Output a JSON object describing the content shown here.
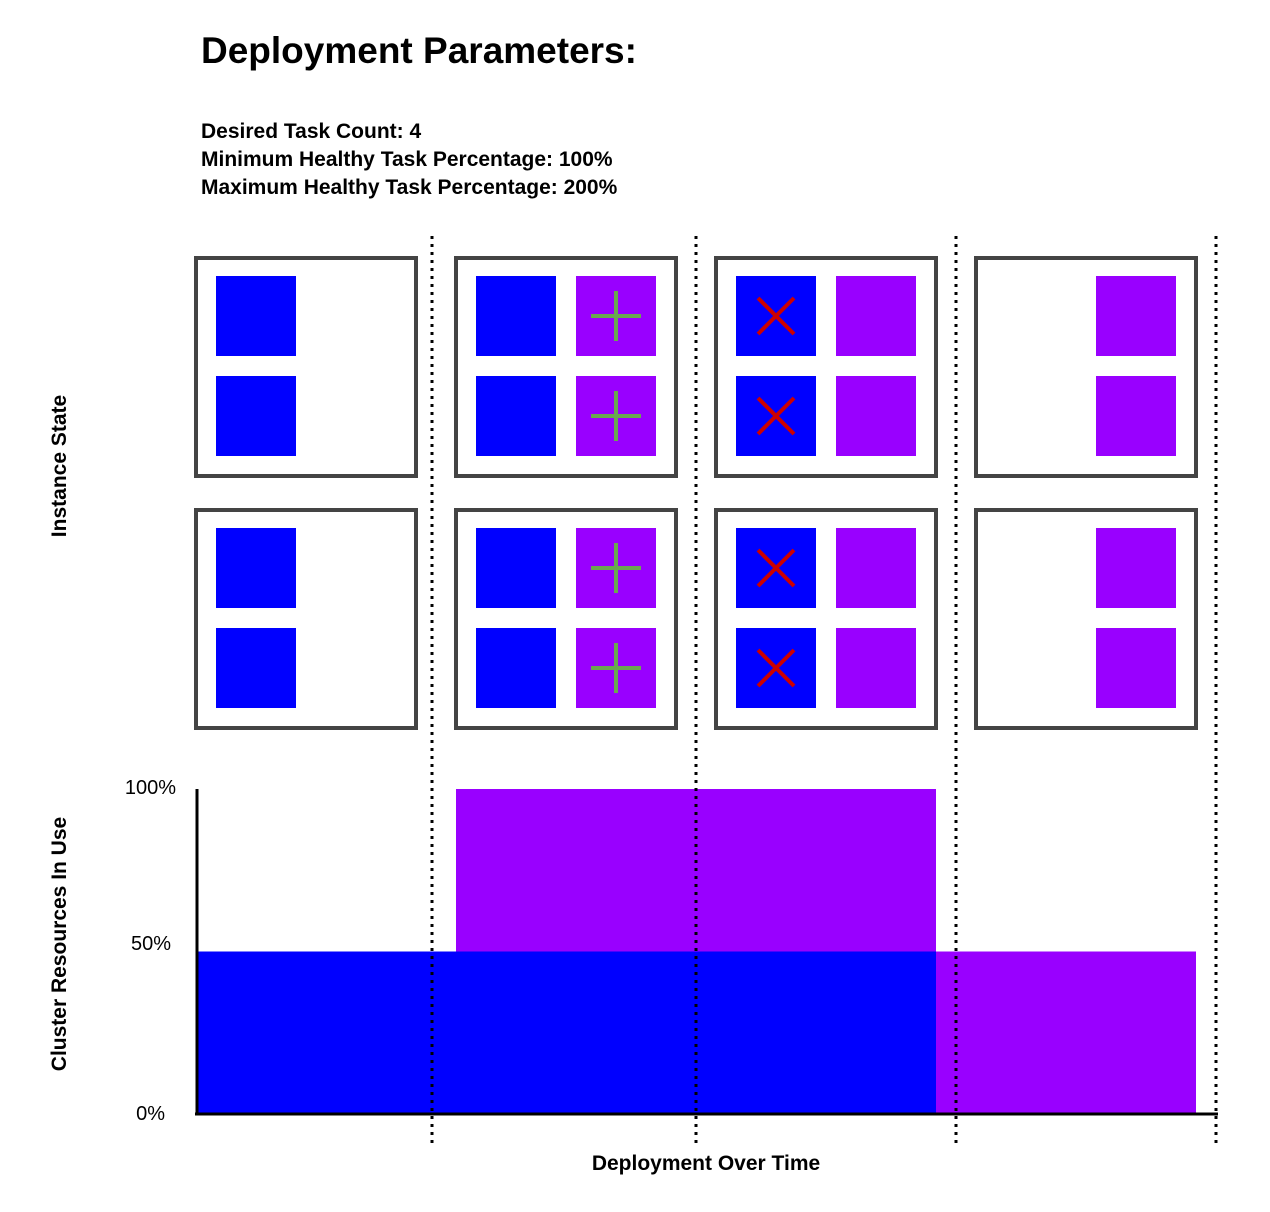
{
  "title": "Deployment Parameters:",
  "parameters": [
    "Desired Task Count: 4",
    "Minimum Healthy Task Percentage: 100%",
    "Maximum Healthy Task Percentage: 200%"
  ],
  "labels": {
    "instance_state": "Instance State",
    "cluster_resources": "Cluster Resources In Use",
    "x_axis": "Deployment Over Time"
  },
  "y_ticks": [
    "100%",
    "50%",
    "0%"
  ],
  "colors": {
    "old_task": "#0000ff",
    "new_task": "#9900ff",
    "plus": "#6aa84f",
    "cross": "#cc0000",
    "border": "#444444"
  },
  "stages": [
    {
      "instances": [
        {
          "tasks": [
            {
              "type": "old",
              "mark": "none"
            },
            null,
            {
              "type": "old",
              "mark": "none"
            },
            null
          ]
        },
        {
          "tasks": [
            {
              "type": "old",
              "mark": "none"
            },
            null,
            {
              "type": "old",
              "mark": "none"
            },
            null
          ]
        }
      ]
    },
    {
      "instances": [
        {
          "tasks": [
            {
              "type": "old",
              "mark": "none"
            },
            {
              "type": "new",
              "mark": "plus"
            },
            {
              "type": "old",
              "mark": "none"
            },
            {
              "type": "new",
              "mark": "plus"
            }
          ]
        },
        {
          "tasks": [
            {
              "type": "old",
              "mark": "none"
            },
            {
              "type": "new",
              "mark": "plus"
            },
            {
              "type": "old",
              "mark": "none"
            },
            {
              "type": "new",
              "mark": "plus"
            }
          ]
        }
      ]
    },
    {
      "instances": [
        {
          "tasks": [
            {
              "type": "old",
              "mark": "cross"
            },
            {
              "type": "new",
              "mark": "none"
            },
            {
              "type": "old",
              "mark": "cross"
            },
            {
              "type": "new",
              "mark": "none"
            }
          ]
        },
        {
          "tasks": [
            {
              "type": "old",
              "mark": "cross"
            },
            {
              "type": "new",
              "mark": "none"
            },
            {
              "type": "old",
              "mark": "cross"
            },
            {
              "type": "new",
              "mark": "none"
            }
          ]
        }
      ]
    },
    {
      "instances": [
        {
          "tasks": [
            null,
            {
              "type": "new",
              "mark": "none"
            },
            null,
            {
              "type": "new",
              "mark": "none"
            }
          ]
        },
        {
          "tasks": [
            null,
            {
              "type": "new",
              "mark": "none"
            },
            null,
            {
              "type": "new",
              "mark": "none"
            }
          ]
        }
      ]
    }
  ],
  "resources": [
    {
      "stage": 1,
      "old_pct": 50,
      "new_pct": 0
    },
    {
      "stage": 2,
      "old_pct": 50,
      "new_pct": 50
    },
    {
      "stage": 3,
      "old_pct": 50,
      "new_pct": 50
    },
    {
      "stage": 4,
      "old_pct": 0,
      "new_pct": 50
    }
  ]
}
